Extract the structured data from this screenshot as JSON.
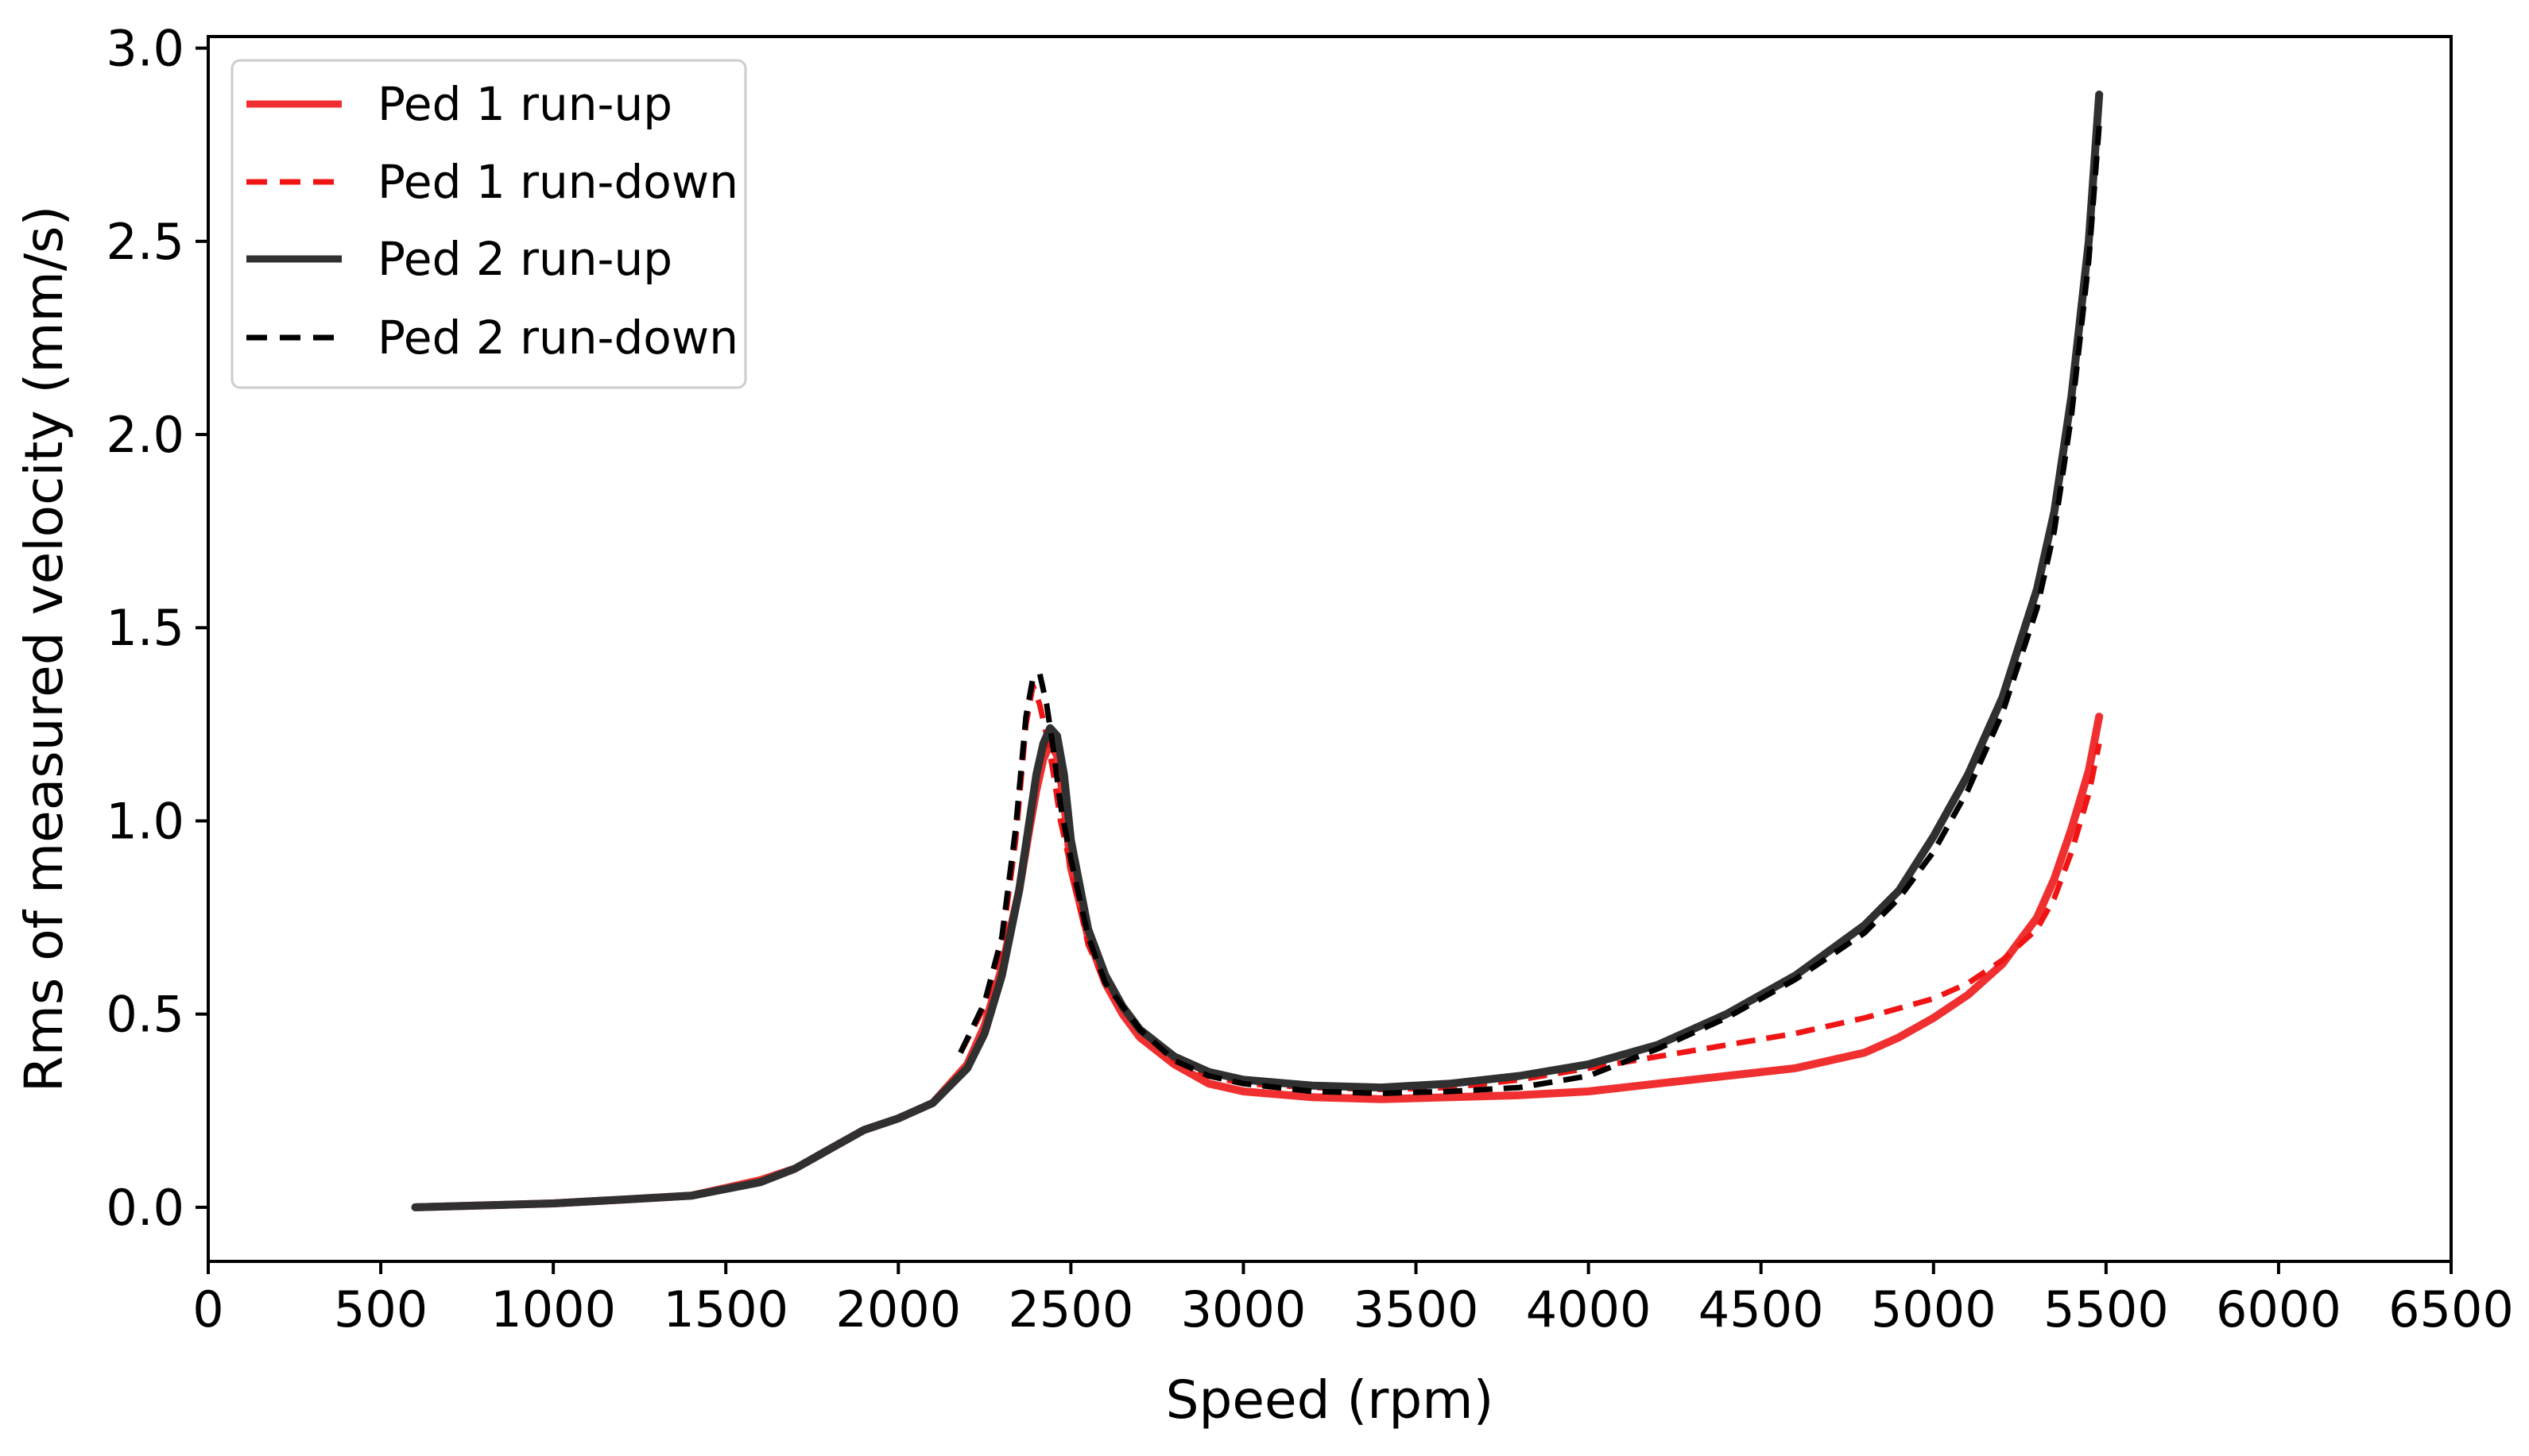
{
  "chart_data": {
    "type": "line",
    "title": "",
    "xlabel": "Speed (rpm)",
    "ylabel": "Rms of measured velocity (mm/s)",
    "xlim": [
      0,
      6500
    ],
    "ylim": [
      -0.14,
      3.03
    ],
    "xticks": [
      0,
      500,
      1000,
      1500,
      2000,
      2500,
      3000,
      3500,
      4000,
      4500,
      5000,
      5500,
      6000,
      6500
    ],
    "yticks": [
      0.0,
      0.5,
      1.0,
      1.5,
      2.0,
      2.5,
      3.0
    ],
    "xtick_labels": [
      "0",
      "500",
      "1000",
      "1500",
      "2000",
      "2500",
      "3000",
      "3500",
      "4000",
      "4500",
      "5000",
      "5500",
      "6000",
      "6500"
    ],
    "ytick_labels": [
      "0.0",
      "0.5",
      "1.0",
      "1.5",
      "2.0",
      "2.5",
      "3.0"
    ],
    "grid": false,
    "legend_position": "top-left",
    "series": [
      {
        "name": "Ped 1 run-up",
        "color": "#f03030",
        "style": "solid",
        "x": [
          600,
          800,
          1000,
          1200,
          1400,
          1600,
          1700,
          1800,
          1900,
          2000,
          2100,
          2200,
          2250,
          2300,
          2350,
          2380,
          2400,
          2420,
          2440,
          2460,
          2480,
          2500,
          2550,
          2600,
          2650,
          2700,
          2800,
          2900,
          3000,
          3200,
          3400,
          3600,
          3800,
          4000,
          4200,
          4400,
          4600,
          4800,
          4900,
          5000,
          5100,
          5200,
          5300,
          5350,
          5400,
          5450,
          5480
        ],
        "y": [
          0.0,
          0.005,
          0.01,
          0.02,
          0.03,
          0.07,
          0.1,
          0.15,
          0.2,
          0.23,
          0.27,
          0.37,
          0.47,
          0.62,
          0.82,
          0.98,
          1.08,
          1.16,
          1.2,
          1.17,
          1.05,
          0.88,
          0.7,
          0.58,
          0.5,
          0.44,
          0.37,
          0.32,
          0.3,
          0.285,
          0.28,
          0.285,
          0.29,
          0.3,
          0.32,
          0.34,
          0.36,
          0.4,
          0.44,
          0.49,
          0.55,
          0.63,
          0.75,
          0.85,
          0.98,
          1.13,
          1.27
        ]
      },
      {
        "name": "Ped 1 run-down",
        "color": "#f01414",
        "style": "dashed",
        "x": [
          2180,
          2250,
          2300,
          2340,
          2370,
          2390,
          2410,
          2430,
          2450,
          2470,
          2500,
          2550,
          2600,
          2700,
          2800,
          2900,
          3000,
          3200,
          3400,
          3600,
          3800,
          4000,
          4200,
          4400,
          4600,
          4800,
          5000,
          5100,
          5200,
          5300,
          5350,
          5400,
          5450,
          5480
        ],
        "y": [
          0.4,
          0.52,
          0.68,
          0.95,
          1.25,
          1.35,
          1.3,
          1.22,
          1.12,
          1.0,
          0.88,
          0.68,
          0.58,
          0.46,
          0.38,
          0.34,
          0.32,
          0.31,
          0.305,
          0.31,
          0.33,
          0.36,
          0.39,
          0.42,
          0.45,
          0.49,
          0.54,
          0.58,
          0.64,
          0.72,
          0.8,
          0.92,
          1.07,
          1.2
        ]
      },
      {
        "name": "Ped 2 run-up",
        "color": "#303030",
        "style": "solid",
        "x": [
          600,
          800,
          1000,
          1200,
          1400,
          1600,
          1700,
          1800,
          1900,
          2000,
          2100,
          2200,
          2250,
          2300,
          2350,
          2380,
          2400,
          2420,
          2440,
          2460,
          2480,
          2500,
          2550,
          2600,
          2650,
          2700,
          2800,
          2900,
          3000,
          3200,
          3400,
          3600,
          3800,
          4000,
          4200,
          4400,
          4600,
          4800,
          4900,
          5000,
          5100,
          5200,
          5300,
          5350,
          5400,
          5450,
          5480
        ],
        "y": [
          0.0,
          0.005,
          0.01,
          0.02,
          0.03,
          0.065,
          0.1,
          0.15,
          0.2,
          0.23,
          0.27,
          0.36,
          0.45,
          0.6,
          0.82,
          1.0,
          1.12,
          1.2,
          1.24,
          1.22,
          1.12,
          0.95,
          0.72,
          0.6,
          0.52,
          0.46,
          0.39,
          0.35,
          0.33,
          0.315,
          0.31,
          0.32,
          0.34,
          0.37,
          0.42,
          0.5,
          0.6,
          0.73,
          0.82,
          0.96,
          1.12,
          1.32,
          1.6,
          1.8,
          2.1,
          2.5,
          2.88
        ]
      },
      {
        "name": "Ped 2 run-down",
        "color": "#000000",
        "style": "dashed",
        "x": [
          2180,
          2250,
          2300,
          2340,
          2370,
          2390,
          2410,
          2430,
          2450,
          2470,
          2500,
          2550,
          2600,
          2700,
          2800,
          2900,
          3000,
          3200,
          3400,
          3600,
          3800,
          4000,
          4200,
          4400,
          4600,
          4800,
          4900,
          5000,
          5100,
          5200,
          5300,
          5350,
          5400,
          5450,
          5480
        ],
        "y": [
          0.4,
          0.53,
          0.7,
          0.98,
          1.27,
          1.37,
          1.38,
          1.3,
          1.18,
          1.04,
          0.9,
          0.7,
          0.58,
          0.46,
          0.38,
          0.34,
          0.32,
          0.3,
          0.295,
          0.3,
          0.31,
          0.34,
          0.41,
          0.49,
          0.59,
          0.71,
          0.8,
          0.92,
          1.08,
          1.28,
          1.55,
          1.75,
          2.05,
          2.45,
          2.8
        ]
      }
    ]
  }
}
